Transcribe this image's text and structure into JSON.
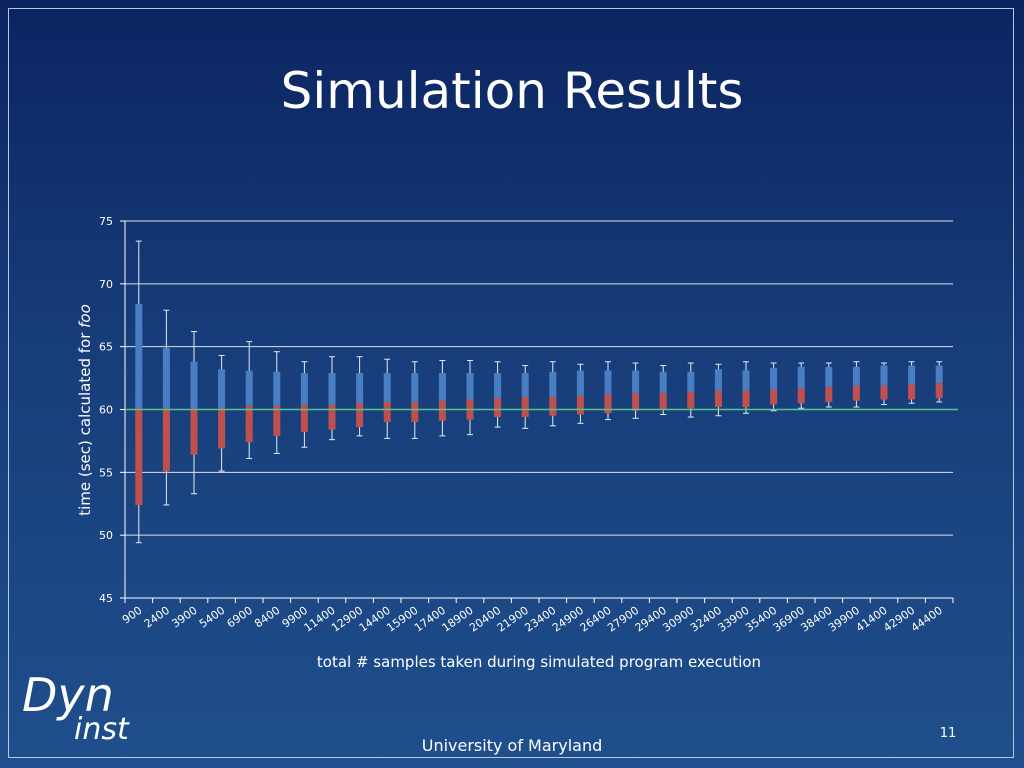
{
  "slide": {
    "title": "Simulation Results",
    "logo": {
      "top": "Dyn",
      "bottom": "inst"
    },
    "page_number": "11",
    "footer": "University of Maryland"
  },
  "colors": {
    "background_top": "#0b2461",
    "background_bottom": "#1f4f8c",
    "upper_box": "#4a7ec3",
    "lower_box": "#c0504d",
    "reference_line": "#59c48a",
    "gridline": "#ffffff",
    "whisker": "#e6ecf5",
    "text": "#ffffff"
  },
  "chart_data": {
    "type": "box",
    "title": "",
    "xlabel": "total # samples taken during simulated program execution",
    "ylabel_prefix": "time (sec) calculated for ",
    "ylabel_italic": "foo",
    "ylim": [
      45,
      75
    ],
    "yticks": [
      45,
      50,
      55,
      60,
      65,
      70,
      75
    ],
    "grid": true,
    "reference_value": 60,
    "categories": [
      "900",
      "2400",
      "3900",
      "5400",
      "6900",
      "8400",
      "9900",
      "11400",
      "12900",
      "14400",
      "15900",
      "17400",
      "18900",
      "20400",
      "21900",
      "23400",
      "24900",
      "26400",
      "27900",
      "29400",
      "30900",
      "32400",
      "33900",
      "35400",
      "36900",
      "38400",
      "39900",
      "41400",
      "42900",
      "44400"
    ],
    "series": [
      {
        "values_min": [
          49.4,
          52.4,
          53.3,
          55.1,
          56.1,
          56.5,
          57.0,
          57.6,
          57.9,
          57.7,
          57.7,
          57.9,
          58.0,
          58.6,
          58.5,
          58.7,
          58.9,
          59.2,
          59.3,
          59.6,
          59.4,
          59.5,
          59.7,
          59.9,
          60.1,
          60.2,
          60.2,
          60.4,
          60.5,
          60.6
        ],
        "values_q1": [
          52.4,
          55.1,
          56.4,
          56.9,
          57.4,
          57.9,
          58.2,
          58.4,
          58.6,
          59.0,
          59.0,
          59.1,
          59.2,
          59.4,
          59.4,
          59.5,
          59.6,
          59.7,
          59.9,
          60.0,
          60.1,
          60.2,
          60.2,
          60.4,
          60.5,
          60.6,
          60.7,
          60.8,
          60.8,
          60.9
        ],
        "values_median": [
          60.1,
          60.1,
          60.1,
          60.1,
          60.3,
          60.3,
          60.4,
          60.4,
          60.5,
          60.6,
          60.6,
          60.7,
          60.8,
          60.9,
          61.0,
          61.0,
          61.1,
          61.2,
          61.3,
          61.3,
          61.4,
          61.5,
          61.5,
          61.6,
          61.7,
          61.8,
          61.9,
          61.9,
          62.0,
          62.1
        ],
        "values_q3": [
          68.4,
          64.9,
          63.8,
          63.2,
          63.1,
          63.0,
          62.9,
          62.9,
          62.9,
          62.9,
          62.9,
          62.9,
          62.9,
          62.9,
          62.9,
          63.0,
          63.1,
          63.1,
          63.1,
          63.0,
          63.0,
          63.2,
          63.1,
          63.3,
          63.4,
          63.4,
          63.4,
          63.5,
          63.5,
          63.5
        ],
        "values_max": [
          73.4,
          67.9,
          66.2,
          64.3,
          65.4,
          64.6,
          63.8,
          64.2,
          64.2,
          64.0,
          63.8,
          63.9,
          63.9,
          63.8,
          63.5,
          63.8,
          63.6,
          63.8,
          63.7,
          63.5,
          63.7,
          63.6,
          63.8,
          63.7,
          63.7,
          63.7,
          63.8,
          63.7,
          63.8,
          63.8
        ]
      }
    ]
  }
}
